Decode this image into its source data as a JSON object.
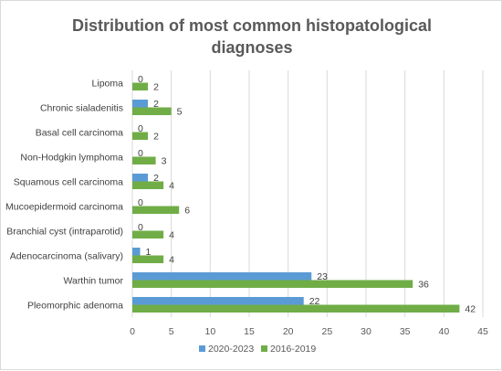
{
  "chart_data": {
    "type": "bar",
    "orientation": "horizontal",
    "title": "Distribution of most common histopatological diagnoses",
    "title_lines": [
      "Distribution of most common histopatological",
      "diagnoses"
    ],
    "categories": [
      "Lipoma",
      "Chronic sialadenitis",
      "Basal cell carcinoma",
      "Non-Hodgkin lymphoma",
      "Squamous cell carcinoma",
      "Mucoepidermoid carcinoma",
      "Branchial cyst (intraparotid)",
      "Adenocarcinoma (salivary)",
      "Warthin tumor",
      "Pleomorphic adenoma"
    ],
    "series": [
      {
        "name": "2020-2023",
        "color": "#5b9bd5",
        "values": [
          0,
          2,
          0,
          0,
          2,
          0,
          0,
          1,
          23,
          22
        ]
      },
      {
        "name": "2016-2019",
        "color": "#70ad47",
        "values": [
          2,
          5,
          2,
          3,
          4,
          6,
          4,
          4,
          36,
          42
        ]
      }
    ],
    "xlim": [
      0,
      45
    ],
    "xticks": [
      0,
      5,
      10,
      15,
      20,
      25,
      30,
      35,
      40,
      45
    ],
    "grid": true,
    "legend_position": "bottom",
    "xlabel": "",
    "ylabel": ""
  }
}
